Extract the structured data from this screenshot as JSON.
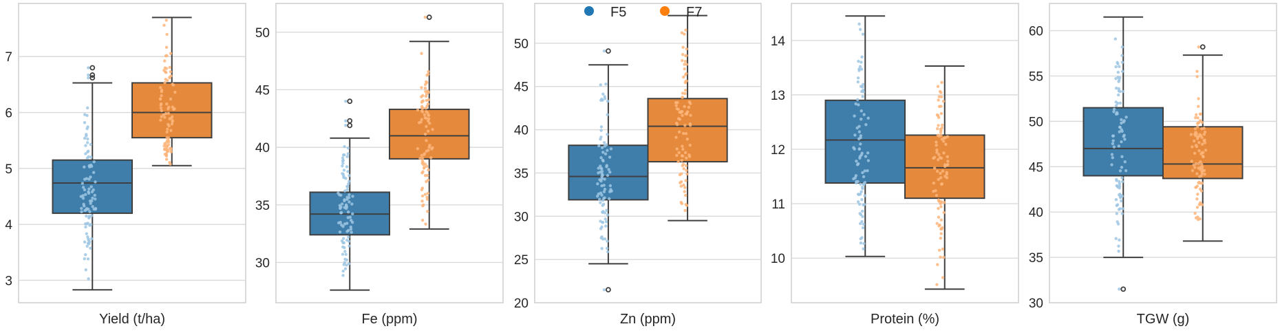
{
  "chart_data": [
    {
      "type": "box",
      "title": "",
      "xlabel": "Yield (t/ha)",
      "ylabel": "",
      "ylim": [
        2.6,
        7.95
      ],
      "yticks": [
        3,
        4,
        5,
        6,
        7
      ],
      "grid": true,
      "series": [
        {
          "name": "F5",
          "whisker_low": 2.83,
          "q1": 4.2,
          "median": 4.74,
          "q3": 5.15,
          "whisker_high": 6.53,
          "outliers": [
            6.62,
            6.67,
            6.8
          ]
        },
        {
          "name": "F7",
          "whisker_low": 5.05,
          "q1": 5.55,
          "median": 6.0,
          "q3": 6.53,
          "whisker_high": 7.7,
          "outliers": []
        }
      ]
    },
    {
      "type": "box",
      "title": "",
      "xlabel": "Fe (ppm)",
      "ylabel": "",
      "ylim": [
        26.5,
        52.5
      ],
      "yticks": [
        30,
        35,
        40,
        45,
        50
      ],
      "grid": true,
      "series": [
        {
          "name": "F5",
          "whisker_low": 27.6,
          "q1": 32.4,
          "median": 34.2,
          "q3": 36.1,
          "whisker_high": 40.8,
          "outliers": [
            41.9,
            42.3,
            44.0
          ]
        },
        {
          "name": "F7",
          "whisker_low": 32.9,
          "q1": 39.0,
          "median": 41.0,
          "q3": 43.3,
          "whisker_high": 49.2,
          "outliers": [
            51.3
          ]
        }
      ]
    },
    {
      "type": "box",
      "title": "",
      "xlabel": "Zn (ppm)",
      "ylabel": "",
      "ylim": [
        20,
        54.6
      ],
      "yticks": [
        20,
        25,
        30,
        35,
        40,
        45,
        50
      ],
      "grid": true,
      "series": [
        {
          "name": "F5",
          "whisker_low": 24.5,
          "q1": 31.9,
          "median": 34.6,
          "q3": 38.2,
          "whisker_high": 47.5,
          "outliers": [
            21.5,
            49.1
          ]
        },
        {
          "name": "F7",
          "whisker_low": 29.5,
          "q1": 36.3,
          "median": 40.4,
          "q3": 43.6,
          "whisker_high": 53.2,
          "outliers": []
        }
      ]
    },
    {
      "type": "box",
      "title": "",
      "xlabel": "Protein (%)",
      "ylabel": "",
      "ylim": [
        9.18,
        14.68
      ],
      "yticks": [
        10,
        11,
        12,
        13,
        14
      ],
      "grid": true,
      "series": [
        {
          "name": "F5",
          "whisker_low": 10.03,
          "q1": 11.38,
          "median": 12.17,
          "q3": 12.9,
          "whisker_high": 14.45,
          "outliers": []
        },
        {
          "name": "F7",
          "whisker_low": 9.43,
          "q1": 11.1,
          "median": 11.66,
          "q3": 12.26,
          "whisker_high": 13.53,
          "outliers": []
        }
      ]
    },
    {
      "type": "box",
      "title": "",
      "xlabel": "TGW (g)",
      "ylabel": "",
      "ylim": [
        30,
        63.0
      ],
      "yticks": [
        30,
        35,
        40,
        45,
        50,
        55,
        60
      ],
      "grid": true,
      "series": [
        {
          "name": "F5",
          "whisker_low": 35.0,
          "q1": 44.0,
          "median": 47.0,
          "q3": 51.5,
          "whisker_high": 61.5,
          "outliers": [
            31.5
          ]
        },
        {
          "name": "F7",
          "whisker_low": 36.8,
          "q1": 43.7,
          "median": 45.3,
          "q3": 49.4,
          "whisker_high": 57.3,
          "outliers": [
            58.2
          ]
        }
      ]
    }
  ],
  "legend": {
    "position": "top-center of third panel",
    "items": [
      {
        "label": "F5",
        "color": "#1f77b4"
      },
      {
        "label": "F7",
        "color": "#ff7f0e"
      }
    ]
  },
  "colors": {
    "F5_box": "#3f7eab",
    "F7_box": "#e58a3c",
    "F5_points": "#9ec5e3",
    "F7_points": "#fdb57a",
    "edge": "#3f3f3f",
    "grid": "#d9d9d9",
    "frame": "#d0d0d0"
  }
}
